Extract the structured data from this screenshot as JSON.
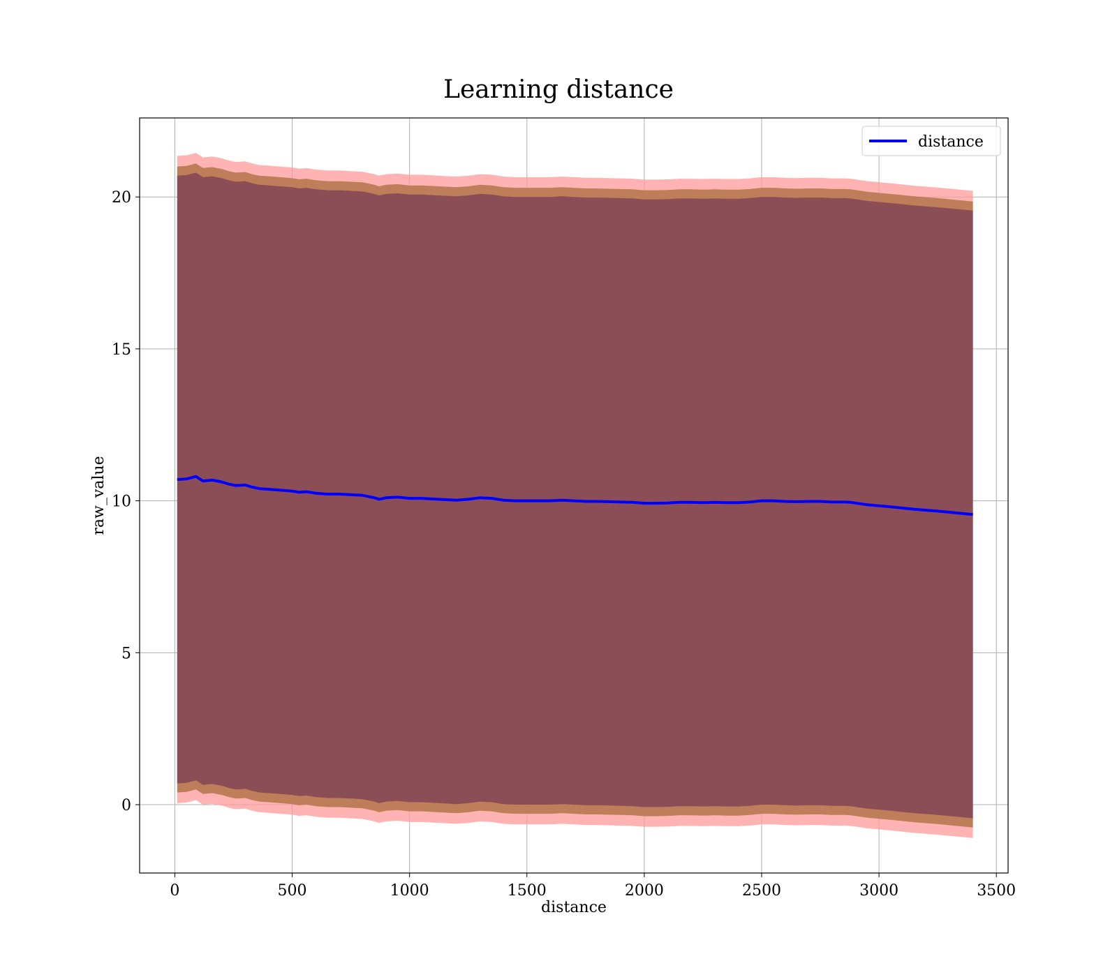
{
  "chart_data": {
    "type": "line",
    "title": "Learning distance",
    "xlabel": "distance",
    "ylabel": "raw_value",
    "xlim": [
      -150,
      3550
    ],
    "ylim": [
      -2.25,
      22.6
    ],
    "xticks": [
      0,
      500,
      1000,
      1500,
      2000,
      2500,
      3000,
      3500
    ],
    "yticks": [
      0,
      5,
      10,
      15,
      20
    ],
    "grid": true,
    "legend_position": "top-right",
    "colors": {
      "line": "#0000ff",
      "outer_band": "#ff9999",
      "middle_band": "#b87850",
      "inner_band": "#7b3f55"
    },
    "series": [
      {
        "name": "distance",
        "x": [
          10,
          50,
          90,
          120,
          160,
          200,
          230,
          260,
          300,
          330,
          360,
          400,
          450,
          500,
          530,
          560,
          600,
          650,
          700,
          750,
          800,
          850,
          870,
          900,
          950,
          1000,
          1050,
          1100,
          1150,
          1200,
          1250,
          1300,
          1350,
          1400,
          1450,
          1500,
          1550,
          1600,
          1650,
          1700,
          1750,
          1800,
          1850,
          1900,
          1950,
          2000,
          2050,
          2100,
          2150,
          2200,
          2250,
          2300,
          2350,
          2400,
          2450,
          2500,
          2550,
          2600,
          2650,
          2700,
          2750,
          2800,
          2850,
          2880,
          2950,
          3050,
          3150,
          3250,
          3400
        ],
        "y": [
          10.7,
          10.72,
          10.8,
          10.65,
          10.68,
          10.62,
          10.55,
          10.5,
          10.52,
          10.45,
          10.4,
          10.38,
          10.35,
          10.32,
          10.28,
          10.3,
          10.25,
          10.22,
          10.22,
          10.2,
          10.18,
          10.1,
          10.05,
          10.1,
          10.12,
          10.08,
          10.08,
          10.06,
          10.04,
          10.02,
          10.05,
          10.1,
          10.08,
          10.02,
          10.0,
          10.0,
          10.0,
          10.0,
          10.02,
          10.0,
          9.98,
          9.98,
          9.97,
          9.96,
          9.95,
          9.92,
          9.92,
          9.93,
          9.95,
          9.95,
          9.94,
          9.95,
          9.94,
          9.94,
          9.96,
          10.0,
          10.0,
          9.98,
          9.97,
          9.98,
          9.98,
          9.96,
          9.96,
          9.95,
          9.87,
          9.8,
          9.72,
          9.66,
          9.55
        ],
        "band_outer": 10.65,
        "band_middle": 10.3,
        "band_inner": 10.0
      }
    ]
  }
}
